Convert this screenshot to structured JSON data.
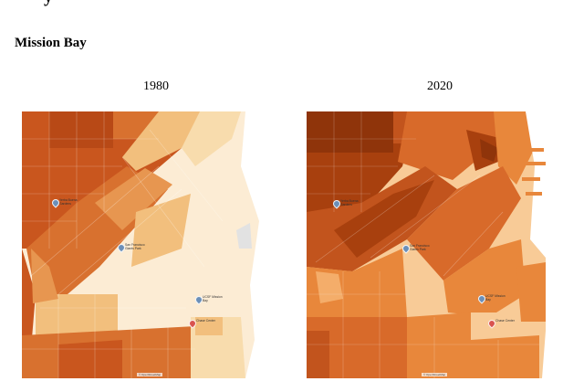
{
  "page": {
    "cut_heading": "y",
    "section_title": "Mission Bay"
  },
  "maps": [
    {
      "year": "1980",
      "palette": [
        "#c9561e",
        "#d8712f",
        "#e79650",
        "#f2bf7d",
        "#f8dcad",
        "#fcecd4"
      ],
      "pois": [
        {
          "name": "Yerba Buena Gardens"
        },
        {
          "name": "San Francisco Giants Park"
        },
        {
          "name": "UCSF Mission Bay"
        },
        {
          "name": "Chase Center"
        }
      ],
      "attribution": "© OpenStreetMap"
    },
    {
      "year": "2020",
      "palette": [
        "#a8400e",
        "#c2541d",
        "#d86a2a",
        "#e8873b",
        "#f4ad6a",
        "#f8cb97"
      ],
      "pois": [
        {
          "name": "Yerba Buena Gardens"
        },
        {
          "name": "San Francisco Giants Park"
        },
        {
          "name": "UCSF Mission Bay"
        },
        {
          "name": "Chase Center"
        }
      ],
      "attribution": "© OpenStreetMap"
    }
  ]
}
